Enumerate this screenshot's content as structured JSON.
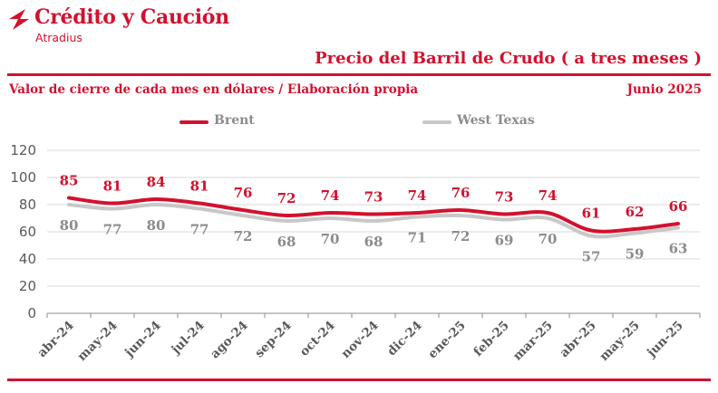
{
  "brand": {
    "name": "Crédito y Caución",
    "sub": "Atradius",
    "color": "#d2112e"
  },
  "header": {
    "title": "Precio del Barril de Crudo ( a tres meses )",
    "subtitle": "Valor de cierre de cada mes en dólares / Elaboración propia",
    "date": "Junio  2025"
  },
  "chart_data": {
    "type": "line",
    "title": "Precio del Barril de Crudo ( a tres meses )",
    "x": [
      "abr-24",
      "may-24",
      "jun-24",
      "jul-24",
      "ago-24",
      "sep-24",
      "oct-24",
      "nov-24",
      "dic-24",
      "ene-25",
      "feb-25",
      "mar-25",
      "abr-25",
      "may-25",
      "jun-25"
    ],
    "ylim": [
      0,
      120
    ],
    "yticks": [
      "0",
      "20",
      "40",
      "60",
      "80",
      "100",
      "120"
    ],
    "grid": true,
    "legend": "top",
    "series": [
      {
        "name": "Brent",
        "color": "#d2112e",
        "label_color": "#d2112e",
        "values": [
          85,
          81,
          84,
          81,
          76,
          72,
          74,
          73,
          74,
          76,
          73,
          74,
          61,
          62,
          66
        ]
      },
      {
        "name": "West Texas",
        "color": "#c8c8c8",
        "label_color": "#8c8c8c",
        "values": [
          80,
          77,
          80,
          77,
          72,
          68,
          70,
          68,
          71,
          72,
          69,
          70,
          57,
          59,
          63
        ]
      }
    ]
  }
}
